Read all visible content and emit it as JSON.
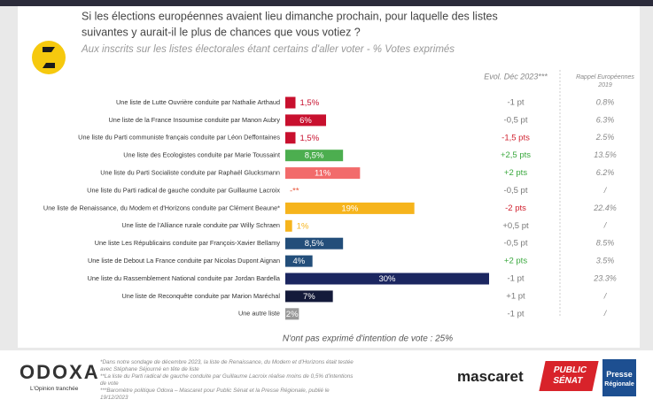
{
  "chart_data": {
    "type": "bar",
    "title": "Si les élections européennes avaient lieu dimanche prochain, pour laquelle des listes suivantes y aurait-il le plus de chances que vous votiez ?",
    "subtitle": "Aux inscrits sur les listes électorales étant certains d'aller voter - % Votes exprimés",
    "evolution_header": "Evol. Déc 2023***",
    "recall_header": "Rappel Européennes 2019",
    "categories": [
      "Une liste de Lutte Ouvrière conduite par Nathalie Arthaud",
      "Une liste de la France Insoumise conduite par Manon Aubry",
      "Une liste du Parti communiste français conduite par Léon Deffontaines",
      "Une liste des Ecologistes conduite par Marie Toussaint",
      "Une liste du Parti Socialiste conduite par Raphaël Glucksmann",
      "Une liste du Parti radical de gauche conduite par Guillaume Lacroix",
      "Une liste de Renaissance, du Modem et d'Horizons conduite par Clément Beaune*",
      "Une liste de l'Alliance rurale conduite par Willy Schraen",
      "Une liste Les Républicains conduite par François-Xavier Bellamy",
      "Une liste de Debout La France conduite par Nicolas Dupont Aignan",
      "Une liste du Rassemblement National conduite par Jordan Bardella",
      "Une liste de Reconquête conduite par Marion Maréchal",
      "Une autre liste"
    ],
    "values": [
      1.5,
      6,
      1.5,
      8.5,
      11,
      null,
      19,
      1,
      8.5,
      4,
      30,
      7,
      2
    ],
    "value_labels": [
      "1,5%",
      "6%",
      "1,5%",
      "8,5%",
      "11%",
      "-**",
      "19%",
      "1%",
      "8,5%",
      "4%",
      "30%",
      "7%",
      "2%"
    ],
    "colors": [
      "#c8102e",
      "#c8102e",
      "#c8102e",
      "#4cae4f",
      "#f26b6b",
      "#e8553a",
      "#f6b41c",
      "#f6b41c",
      "#234e7a",
      "#234e7a",
      "#1b2660",
      "#141a3a",
      "#9a9a9a"
    ],
    "evolution": [
      "-1 pt",
      "-0,5 pt",
      "-1,5 pts",
      "+2,5 pts",
      "+2 pts",
      "-0,5 pt",
      "-2 pts",
      "+0,5 pt",
      "-0,5 pt",
      "+2 pts",
      "-1 pt",
      "+1 pt",
      "-1 pt"
    ],
    "evolution_colors": [
      "#777",
      "#777",
      "#d0202e",
      "#3aa83e",
      "#3aa83e",
      "#777",
      "#d0202e",
      "#777",
      "#777",
      "#3aa83e",
      "#777",
      "#777",
      "#777"
    ],
    "recall_2019": [
      "0.8%",
      "6.3%",
      "2.5%",
      "13.5%",
      "6.2%",
      "/",
      "22.4%",
      "/",
      "8.5%",
      "3.5%",
      "23.3%",
      "/",
      "/"
    ],
    "note": "N'ont pas exprimé d'intention de vote : 25%"
  },
  "footnotes": [
    "*Dans notre sondage de décembre 2023, la liste de Renaissance, du Modem et d'Horizons était testée avec Stéphane Séjourné en tête de liste",
    "**La liste du Parti radical de gauche conduite par Guillaume Lacroix réalise moins de 0,5% d'intentions de vote",
    "***Baromètre politique Odoxa – Mascaret pour Public Sénat et la Presse Régionale, publié le 19/12/2023"
  ],
  "logos": {
    "odoxa": "ODOXA",
    "odoxa_tagline": "L'Opinion tranchée",
    "mascaret": "mascaret",
    "public": "PUBLIC",
    "senat": "SÉNAT",
    "presse": "Presse",
    "regionale": "Régionale"
  }
}
